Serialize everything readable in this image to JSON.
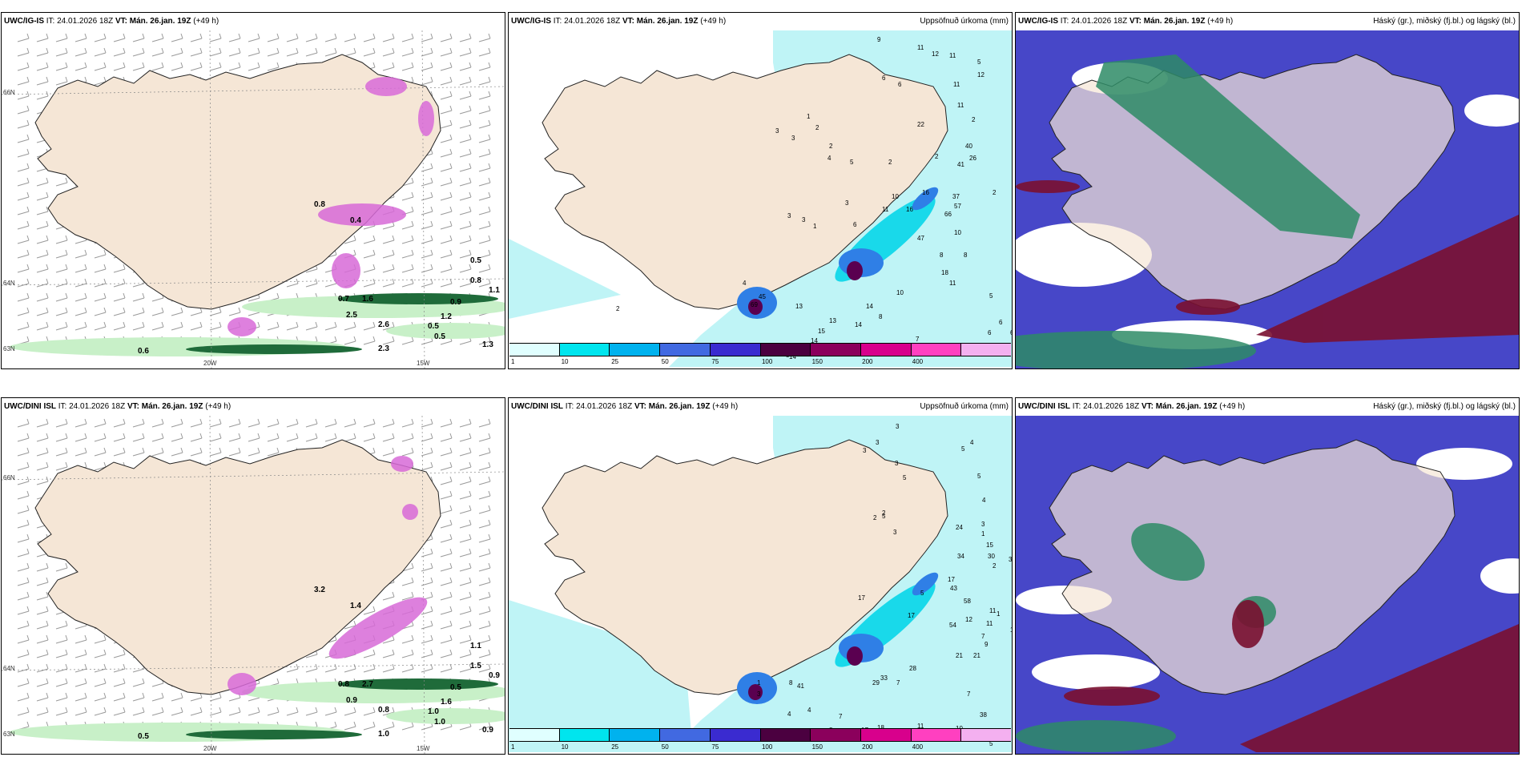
{
  "panels": [
    {
      "model": "UWC/IG-IS",
      "it_label": "IT:",
      "it_value": "24.01.2026 18Z",
      "vt_label": "VT:",
      "vt_value": "Mán. 26.jan. 19Z",
      "lead": "(+49 h)",
      "field_title": "",
      "kind": "wind",
      "lat_labels": [
        "66N",
        "64N",
        "63N"
      ],
      "lon_labels": [
        "20W",
        "15W"
      ],
      "values": [
        {
          "text": "0.5",
          "bold": true
        },
        {
          "text": "0.8",
          "bold": true
        },
        {
          "text": "1.1",
          "bold": true
        },
        {
          "text": "0.6",
          "bold": true
        },
        {
          "text": "2.5",
          "bold": true
        },
        {
          "text": "0.7",
          "bold": true
        },
        {
          "text": "1.6",
          "bold": true
        },
        {
          "text": "0.5",
          "bold": true
        },
        {
          "text": "0.5",
          "bold": true
        },
        {
          "text": "1.2",
          "bold": true
        },
        {
          "text": "2.3",
          "bold": true
        },
        {
          "text": "1.3",
          "bold": true
        },
        {
          "text": "0.9",
          "bold": true
        },
        {
          "text": "2.6",
          "bold": true
        },
        {
          "text": "0.8",
          "bold": true
        },
        {
          "text": "0.4",
          "bold": true
        }
      ]
    },
    {
      "model": "UWC/IG-IS",
      "it_label": "IT:",
      "it_value": "24.01.2026 18Z",
      "vt_label": "VT:",
      "vt_value": "Mán. 26.jan. 19Z",
      "lead": "(+49 h)",
      "field_title": "Uppsöfnuð úrkoma (mm)",
      "kind": "precip",
      "values": [
        {
          "text": "9"
        },
        {
          "text": "11"
        },
        {
          "text": "12"
        },
        {
          "text": "11"
        },
        {
          "text": "5"
        },
        {
          "text": "12"
        },
        {
          "text": "11"
        },
        {
          "text": "6"
        },
        {
          "text": "6"
        },
        {
          "text": "11"
        },
        {
          "text": "1"
        },
        {
          "text": "2"
        },
        {
          "text": "3"
        },
        {
          "text": "3"
        },
        {
          "text": "2"
        },
        {
          "text": "22"
        },
        {
          "text": "2"
        },
        {
          "text": "2"
        },
        {
          "text": "4"
        },
        {
          "text": "5"
        },
        {
          "text": "2"
        },
        {
          "text": "40"
        },
        {
          "text": "26"
        },
        {
          "text": "41"
        },
        {
          "text": "2"
        },
        {
          "text": "10"
        },
        {
          "text": "16"
        },
        {
          "text": "37"
        },
        {
          "text": "11"
        },
        {
          "text": "16"
        },
        {
          "text": "57"
        },
        {
          "text": "66"
        },
        {
          "text": "3"
        },
        {
          "text": "3"
        },
        {
          "text": "3"
        },
        {
          "text": "1"
        },
        {
          "text": "6"
        },
        {
          "text": "47"
        },
        {
          "text": "10"
        },
        {
          "text": "8"
        },
        {
          "text": "8"
        },
        {
          "text": "18"
        },
        {
          "text": "11"
        },
        {
          "text": "10"
        },
        {
          "text": "4"
        },
        {
          "text": "45"
        },
        {
          "text": "2"
        },
        {
          "text": "13"
        },
        {
          "text": "69"
        },
        {
          "text": "14"
        },
        {
          "text": "14"
        },
        {
          "text": "8"
        },
        {
          "text": "5"
        },
        {
          "text": "6"
        },
        {
          "text": "6"
        },
        {
          "text": "6"
        },
        {
          "text": "13"
        },
        {
          "text": "15"
        },
        {
          "text": "14"
        },
        {
          "text": "14"
        },
        {
          "text": "7"
        },
        {
          "text": "8"
        },
        {
          "text": "8"
        },
        {
          "text": "15"
        },
        {
          "text": "14"
        },
        {
          "text": "8"
        }
      ],
      "legend": [
        "1",
        "10",
        "25",
        "50",
        "75",
        "100",
        "150",
        "200",
        "400"
      ],
      "legend_colors": [
        "#e0ffff",
        "#00e5ee",
        "#00b2ee",
        "#4169e1",
        "#3a2bd0",
        "#4b0040",
        "#8b005c",
        "#d8008c",
        "#ff40c0",
        "#f4b0f0"
      ]
    },
    {
      "model": "UWC/IG-IS",
      "it_label": "IT:",
      "it_value": "24.01.2026 18Z",
      "vt_label": "VT:",
      "vt_value": "Mán. 26.jan. 19Z",
      "lead": "(+49 h)",
      "field_title": "Háský (gr.), miðský (fj.bl.) og lágský (bl.)",
      "kind": "cloud"
    },
    {
      "model": "UWC/DINI ISL",
      "it_label": "IT:",
      "it_value": "24.01.2026 18Z",
      "vt_label": "VT:",
      "vt_value": "Mán. 26.jan. 19Z",
      "lead": "(+49 h)",
      "field_title": "",
      "kind": "wind",
      "lat_labels": [
        "66N",
        "64N",
        "63N"
      ],
      "lon_labels": [
        "20W",
        "15W"
      ],
      "values": [
        {
          "text": "1.1",
          "bold": true
        },
        {
          "text": "1.5",
          "bold": true
        },
        {
          "text": "0.9",
          "bold": true
        },
        {
          "text": "0.5",
          "bold": true
        },
        {
          "text": "0.9",
          "bold": true
        },
        {
          "text": "0.8",
          "bold": true
        },
        {
          "text": "2.7",
          "bold": true
        },
        {
          "text": "1.0",
          "bold": true
        },
        {
          "text": "1.0",
          "bold": true
        },
        {
          "text": "1.6",
          "bold": true
        },
        {
          "text": "1.0",
          "bold": true
        },
        {
          "text": "0.9",
          "bold": true
        },
        {
          "text": "0.5",
          "bold": true
        },
        {
          "text": "0.8",
          "bold": true
        },
        {
          "text": "3.2",
          "bold": true
        },
        {
          "text": "1.4",
          "bold": true
        }
      ]
    },
    {
      "model": "UWC/DINI ISL",
      "it_label": "IT:",
      "it_value": "24.01.2026 18Z",
      "vt_label": "VT:",
      "vt_value": "Mán. 26.jan. 19Z",
      "lead": "(+49 h)",
      "field_title": "Uppsöfnuð úrkoma (mm)",
      "kind": "precip",
      "values": [
        {
          "text": "3"
        },
        {
          "text": "4"
        },
        {
          "text": "3"
        },
        {
          "text": "3"
        },
        {
          "text": "3"
        },
        {
          "text": "5"
        },
        {
          "text": "5"
        },
        {
          "text": "5"
        },
        {
          "text": "4"
        },
        {
          "text": "3"
        },
        {
          "text": "1"
        },
        {
          "text": "2"
        },
        {
          "text": "2"
        },
        {
          "text": "5"
        },
        {
          "text": "3"
        },
        {
          "text": "24"
        },
        {
          "text": "15"
        },
        {
          "text": "30"
        },
        {
          "text": "34"
        },
        {
          "text": "2"
        },
        {
          "text": "3"
        },
        {
          "text": "17"
        },
        {
          "text": "43"
        },
        {
          "text": "5"
        },
        {
          "text": "11"
        },
        {
          "text": "17"
        },
        {
          "text": "58"
        },
        {
          "text": "1"
        },
        {
          "text": "17"
        },
        {
          "text": "7"
        },
        {
          "text": "54"
        },
        {
          "text": "12"
        },
        {
          "text": "11"
        },
        {
          "text": "11"
        },
        {
          "text": "9"
        },
        {
          "text": "21"
        },
        {
          "text": "21"
        },
        {
          "text": "28"
        },
        {
          "text": "29"
        },
        {
          "text": "33"
        },
        {
          "text": "7"
        },
        {
          "text": "7"
        },
        {
          "text": "38"
        },
        {
          "text": "8"
        },
        {
          "text": "41"
        },
        {
          "text": "1"
        },
        {
          "text": "3"
        },
        {
          "text": "4"
        },
        {
          "text": "4"
        },
        {
          "text": "7"
        },
        {
          "text": "8"
        },
        {
          "text": "27"
        },
        {
          "text": "17"
        },
        {
          "text": "18"
        },
        {
          "text": "11"
        },
        {
          "text": "9"
        },
        {
          "text": "10"
        },
        {
          "text": "9"
        },
        {
          "text": "8"
        },
        {
          "text": "5"
        }
      ],
      "legend": [
        "1",
        "10",
        "25",
        "50",
        "75",
        "100",
        "150",
        "200",
        "400"
      ],
      "legend_colors": [
        "#e0ffff",
        "#00e5ee",
        "#00b2ee",
        "#4169e1",
        "#3a2bd0",
        "#4b0040",
        "#8b005c",
        "#d8008c",
        "#ff40c0",
        "#f4b0f0"
      ]
    },
    {
      "model": "UWC/DINI ISL",
      "it_label": "IT:",
      "it_value": "24.01.2026 18Z",
      "vt_label": "VT:",
      "vt_value": "Mán. 26.jan. 19Z",
      "lead": "(+49 h)",
      "field_title": "Háský (gr.), miðský (fj.bl.) og lágský (bl.)",
      "kind": "cloud"
    }
  ],
  "colors": {
    "land": "#f5e6d6",
    "coast": "#222222",
    "wind_green_light": "#c8f0c8",
    "wind_green_dark": "#1f6b3a",
    "wind_magenta": "#d86ad8",
    "precip_light": "#bff4f6",
    "precip_cyan": "#19d9ea",
    "precip_blue": "#2f7fe6",
    "precip_dark": "#5a0050",
    "cloud_high": "#2e8b66",
    "cloud_mid": "#4747c8",
    "cloud_low": "#7a1030"
  }
}
